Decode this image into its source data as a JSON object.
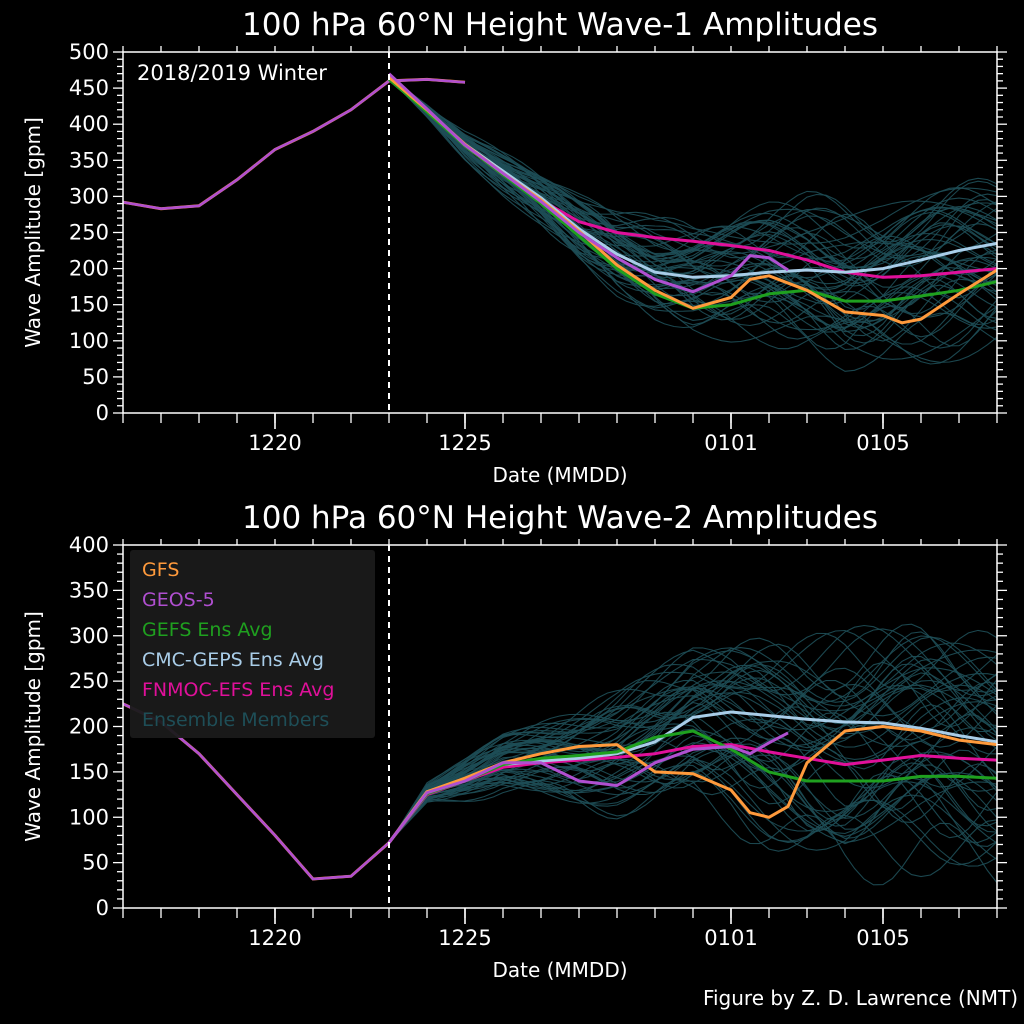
{
  "credit": "Figure by Z. D. Lawrence (NMT)",
  "colors": {
    "background": "#000000",
    "axes": "#ffffff",
    "GFS": "#ff9a3c",
    "GEOS-5": "#b04fd0",
    "GEFS Ens Avg": "#1fa01f",
    "CMC-GEPS Ens Avg": "#a9cde8",
    "FNMOC-EFS Ens Avg": "#e0109a",
    "Ensemble Members": "#1e4e57"
  },
  "chart_data": [
    {
      "type": "line",
      "title": "100 hPa 60°N    Height Wave-1 Amplitudes",
      "xlabel": "Date (MMDD)",
      "ylabel": "Wave Amplitude  [gpm]",
      "annotation": "2018/2019 Winter",
      "xlim": [
        "2018-12-16",
        "2019-01-08"
      ],
      "ylim": [
        0,
        500
      ],
      "yticks": [
        0,
        50,
        100,
        150,
        200,
        250,
        300,
        350,
        400,
        450,
        500
      ],
      "xticks": [
        {
          "label": "1220",
          "date": "2018-12-20"
        },
        {
          "label": "1225",
          "date": "2018-12-25"
        },
        {
          "label": "0101",
          "date": "2019-01-01"
        },
        {
          "label": "0105",
          "date": "2019-01-05"
        }
      ],
      "initialization_date": "2018-12-23",
      "grid": false,
      "legend": "none",
      "analysis": {
        "x": [
          "2018-12-16",
          "2018-12-17",
          "2018-12-18",
          "2018-12-19",
          "2018-12-20",
          "2018-12-21",
          "2018-12-22",
          "2018-12-23",
          "2018-12-24",
          "2018-12-25"
        ],
        "y": [
          292,
          283,
          287,
          323,
          365,
          390,
          420,
          460,
          462,
          458
        ]
      },
      "series": [
        {
          "name": "FNMOC-EFS Ens Avg",
          "x": [
            "2018-12-23",
            "2018-12-24",
            "2018-12-25",
            "2018-12-26",
            "2018-12-27",
            "2018-12-28",
            "2018-12-29",
            "2018-12-30",
            "2018-12-31",
            "2019-01-01",
            "2019-01-02",
            "2019-01-03",
            "2019-01-04",
            "2019-01-05",
            "2019-01-06",
            "2019-01-07",
            "2019-01-08"
          ],
          "y": [
            468,
            420,
            370,
            330,
            295,
            265,
            250,
            243,
            238,
            232,
            225,
            212,
            195,
            188,
            190,
            195,
            200
          ]
        },
        {
          "name": "CMC-GEPS Ens Avg",
          "x": [
            "2018-12-23",
            "2018-12-24",
            "2018-12-25",
            "2018-12-26",
            "2018-12-27",
            "2018-12-28",
            "2018-12-29",
            "2018-12-30",
            "2018-12-31",
            "2019-01-01",
            "2019-01-02",
            "2019-01-03",
            "2019-01-04",
            "2019-01-05",
            "2019-01-06",
            "2019-01-07",
            "2019-01-08"
          ],
          "y": [
            462,
            418,
            372,
            335,
            298,
            255,
            220,
            195,
            188,
            190,
            195,
            198,
            195,
            200,
            212,
            225,
            235
          ]
        },
        {
          "name": "GEFS Ens Avg",
          "x": [
            "2018-12-23",
            "2018-12-24",
            "2018-12-25",
            "2018-12-26",
            "2018-12-27",
            "2018-12-28",
            "2018-12-29",
            "2018-12-30",
            "2018-12-31",
            "2019-01-01",
            "2019-01-02",
            "2019-01-03",
            "2019-01-04",
            "2019-01-05",
            "2019-01-06",
            "2019-01-07",
            "2019-01-08"
          ],
          "y": [
            462,
            417,
            370,
            330,
            290,
            245,
            200,
            165,
            145,
            150,
            165,
            170,
            155,
            155,
            162,
            170,
            182
          ]
        },
        {
          "name": "GFS",
          "x": [
            "2018-12-23",
            "2018-12-24",
            "2018-12-25",
            "2018-12-26",
            "2018-12-27",
            "2018-12-28",
            "2018-12-29",
            "2018-12-30",
            "2018-12-31",
            "2019-01-01",
            "2019-01-01T12",
            "2019-01-02",
            "2019-01-03",
            "2019-01-04",
            "2019-01-05",
            "2019-01-05T12",
            "2019-01-06",
            "2019-01-07",
            "2019-01-08"
          ],
          "y": [
            465,
            420,
            372,
            332,
            295,
            252,
            205,
            170,
            145,
            160,
            185,
            190,
            170,
            140,
            135,
            125,
            130,
            165,
            198
          ]
        },
        {
          "name": "GEOS-5",
          "x": [
            "2018-12-23",
            "2018-12-24",
            "2018-12-25",
            "2018-12-26",
            "2018-12-27",
            "2018-12-28",
            "2018-12-29",
            "2018-12-30",
            "2018-12-31",
            "2019-01-01",
            "2019-01-01T12",
            "2019-01-02",
            "2019-01-02T12"
          ],
          "y": [
            470,
            421,
            371,
            332,
            293,
            250,
            215,
            185,
            168,
            190,
            218,
            215,
            198
          ]
        }
      ]
    },
    {
      "type": "line",
      "title": "100 hPa 60°N   Height Wave-2 Amplitudes",
      "xlabel": "Date (MMDD)",
      "ylabel": "Wave Amplitude  [gpm]",
      "xlim": [
        "2018-12-16",
        "2019-01-08"
      ],
      "ylim": [
        0,
        400
      ],
      "yticks": [
        0,
        50,
        100,
        150,
        200,
        250,
        300,
        350,
        400
      ],
      "xticks": [
        {
          "label": "1220",
          "date": "2018-12-20"
        },
        {
          "label": "1225",
          "date": "2018-12-25"
        },
        {
          "label": "0101",
          "date": "2019-01-01"
        },
        {
          "label": "0105",
          "date": "2019-01-05"
        }
      ],
      "initialization_date": "2018-12-23",
      "grid": false,
      "legend": "top-left",
      "legend_entries": [
        "GFS",
        "GEOS-5",
        "GEFS Ens Avg",
        "CMC-GEPS Ens Avg",
        "FNMOC-EFS Ens Avg",
        "Ensemble Members"
      ],
      "analysis": {
        "x": [
          "2018-12-16",
          "2018-12-17",
          "2018-12-18",
          "2018-12-19",
          "2018-12-20",
          "2018-12-21",
          "2018-12-22",
          "2018-12-23"
        ],
        "y": [
          225,
          205,
          170,
          125,
          80,
          32,
          35,
          72
        ]
      },
      "series": [
        {
          "name": "FNMOC-EFS Ens Avg",
          "x": [
            "2018-12-23",
            "2018-12-24",
            "2018-12-25",
            "2018-12-26",
            "2018-12-27",
            "2018-12-28",
            "2018-12-29",
            "2018-12-30",
            "2018-12-31",
            "2019-01-01",
            "2019-01-02",
            "2019-01-03",
            "2019-01-04",
            "2019-01-05",
            "2019-01-06",
            "2019-01-07",
            "2019-01-08"
          ],
          "y": [
            72,
            125,
            140,
            155,
            160,
            163,
            166,
            170,
            178,
            180,
            172,
            165,
            158,
            163,
            168,
            165,
            163
          ]
        },
        {
          "name": "CMC-GEPS Ens Avg",
          "x": [
            "2018-12-23",
            "2018-12-24",
            "2018-12-25",
            "2018-12-26",
            "2018-12-27",
            "2018-12-28",
            "2018-12-29",
            "2018-12-30",
            "2018-12-31",
            "2019-01-01",
            "2019-01-02",
            "2019-01-03",
            "2019-01-04",
            "2019-01-05",
            "2019-01-06",
            "2019-01-07",
            "2019-01-08"
          ],
          "y": [
            72,
            128,
            142,
            158,
            162,
            165,
            170,
            183,
            210,
            216,
            212,
            208,
            205,
            204,
            198,
            190,
            183
          ]
        },
        {
          "name": "GEFS Ens Avg",
          "x": [
            "2018-12-23",
            "2018-12-24",
            "2018-12-25",
            "2018-12-26",
            "2018-12-27",
            "2018-12-28",
            "2018-12-29",
            "2018-12-30",
            "2018-12-31",
            "2019-01-01",
            "2019-01-02",
            "2019-01-03",
            "2019-01-04",
            "2019-01-05",
            "2019-01-06",
            "2019-01-07",
            "2019-01-08"
          ],
          "y": [
            72,
            126,
            140,
            158,
            165,
            168,
            172,
            188,
            195,
            175,
            150,
            140,
            140,
            140,
            145,
            145,
            143
          ]
        },
        {
          "name": "GFS",
          "x": [
            "2018-12-23",
            "2018-12-24",
            "2018-12-25",
            "2018-12-26",
            "2018-12-27",
            "2018-12-28",
            "2018-12-29",
            "2018-12-30",
            "2018-12-31",
            "2019-01-01",
            "2019-01-01T12",
            "2019-01-02",
            "2019-01-02T12",
            "2019-01-03",
            "2019-01-04",
            "2019-01-05",
            "2019-01-06",
            "2019-01-07",
            "2019-01-08"
          ],
          "y": [
            72,
            128,
            143,
            160,
            170,
            178,
            180,
            150,
            148,
            130,
            105,
            100,
            112,
            160,
            195,
            200,
            195,
            185,
            180
          ]
        },
        {
          "name": "GEOS-5",
          "x": [
            "2018-12-23",
            "2018-12-24",
            "2018-12-25",
            "2018-12-26",
            "2018-12-27",
            "2018-12-28",
            "2018-12-29",
            "2018-12-30",
            "2018-12-31",
            "2019-01-01",
            "2019-01-01T12",
            "2019-01-02",
            "2019-01-02T12"
          ],
          "y": [
            72,
            127,
            140,
            160,
            160,
            140,
            135,
            160,
            175,
            178,
            170,
            182,
            193
          ]
        }
      ]
    }
  ]
}
